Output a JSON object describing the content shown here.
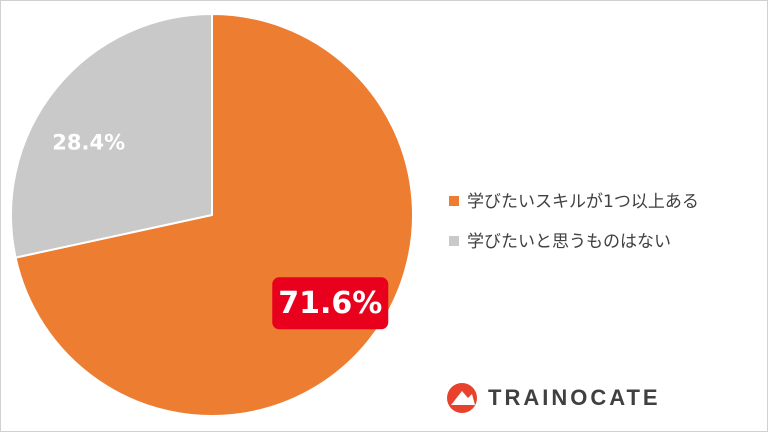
{
  "chart_data": {
    "type": "pie",
    "categories": [
      "学びたいスキルが1つ以上ある",
      "学びたいと思うものはない"
    ],
    "values": [
      71.6,
      28.4
    ],
    "value_labels": [
      "71.6%",
      "28.4%"
    ],
    "colors": [
      "#ed7d31",
      "#c9c9c9"
    ],
    "legend": "right"
  },
  "brand": "TRAINOCATE"
}
